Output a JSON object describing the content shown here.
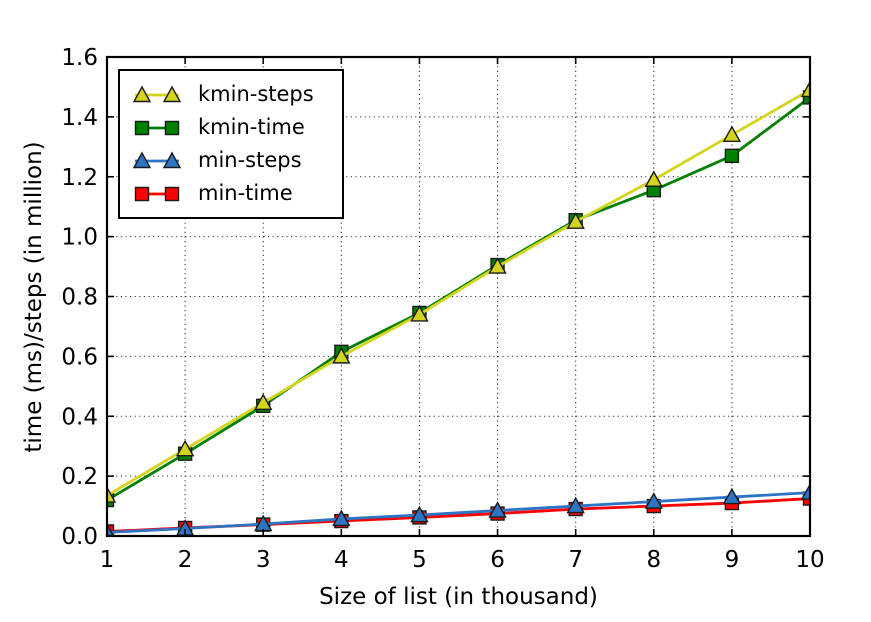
{
  "figure": {
    "background": "#ffffff"
  },
  "chart_data": {
    "type": "line",
    "title": "",
    "xlabel": "Size of list (in thousand)",
    "ylabel": "time (ms)/steps (in million)",
    "xlim": [
      1,
      10
    ],
    "ylim": [
      0,
      1.6
    ],
    "grid": true,
    "grid_style": "dotted",
    "legend_position": "upper left",
    "xticks": [
      1,
      2,
      3,
      4,
      5,
      6,
      7,
      8,
      9,
      10
    ],
    "xticklabels": [
      "1",
      "2",
      "3",
      "4",
      "5",
      "6",
      "7",
      "8",
      "9",
      "10"
    ],
    "yticks": [
      0,
      0.2,
      0.4,
      0.6,
      0.8,
      1.0,
      1.2,
      1.4,
      1.6
    ],
    "yticklabels": [
      "0.0",
      "0.2",
      "0.4",
      "0.6",
      "0.8",
      "1.0",
      "1.2",
      "1.4",
      "1.6"
    ],
    "x": [
      1,
      2,
      3,
      4,
      5,
      6,
      7,
      8,
      9,
      10
    ],
    "series": [
      {
        "name": "kmin-steps",
        "marker": "triangle",
        "color": "#d4d41f",
        "values": [
          0.135,
          0.29,
          0.445,
          0.6,
          0.74,
          0.9,
          1.05,
          1.19,
          1.34,
          1.49
        ]
      },
      {
        "name": "kmin-time",
        "marker": "square",
        "color": "#008000",
        "values": [
          0.12,
          0.275,
          0.435,
          0.615,
          0.745,
          0.905,
          1.055,
          1.155,
          1.27,
          1.465
        ]
      },
      {
        "name": "min-steps",
        "marker": "triangle",
        "color": "#2d74c4",
        "values": [
          0.012,
          0.025,
          0.04,
          0.057,
          0.07,
          0.085,
          0.1,
          0.115,
          0.13,
          0.145
        ]
      },
      {
        "name": "min-time",
        "marker": "square",
        "color": "#ff0000",
        "values": [
          0.015,
          0.027,
          0.038,
          0.05,
          0.062,
          0.075,
          0.09,
          0.1,
          0.11,
          0.125
        ]
      }
    ],
    "draw_order": [
      "kmin-time",
      "kmin-steps",
      "min-time",
      "min-steps"
    ],
    "colors": {
      "spine": "#000000",
      "grid": "#333333",
      "marker_edge": "#1a1a1a"
    }
  }
}
